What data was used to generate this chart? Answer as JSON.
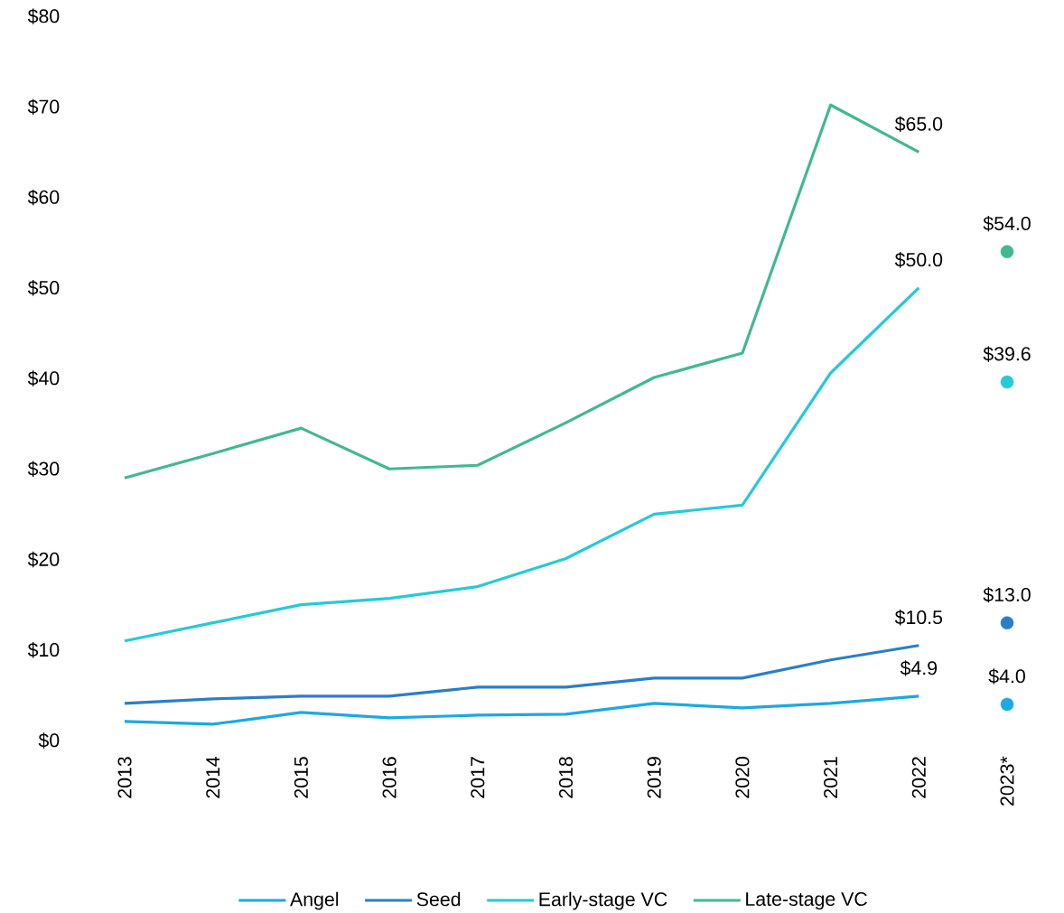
{
  "chart_data": {
    "type": "line",
    "categories": [
      "2013",
      "2014",
      "2015",
      "2016",
      "2017",
      "2018",
      "2019",
      "2020",
      "2021",
      "2022",
      "2023*"
    ],
    "series": [
      {
        "name": "Angel",
        "color": "#1ba9e1",
        "values": [
          2.1,
          1.8,
          3.1,
          2.5,
          2.8,
          2.9,
          4.1,
          3.6,
          4.1,
          4.9,
          null
        ],
        "value_labels": [
          null,
          null,
          null,
          null,
          null,
          null,
          null,
          null,
          null,
          "$4.9",
          null
        ]
      },
      {
        "name": "Seed",
        "color": "#2b7ec6",
        "values": [
          4.1,
          4.6,
          4.9,
          4.9,
          5.9,
          5.9,
          6.9,
          6.9,
          8.9,
          10.5,
          null
        ],
        "value_labels": [
          null,
          null,
          null,
          null,
          null,
          null,
          null,
          null,
          null,
          "$10.5",
          null
        ]
      },
      {
        "name": "Early-stage VC",
        "color": "#26cad6",
        "values": [
          11.0,
          13.0,
          15.0,
          15.7,
          17.0,
          20.1,
          25.0,
          26.0,
          40.6,
          50.0,
          null
        ],
        "value_labels": [
          null,
          null,
          null,
          null,
          null,
          null,
          null,
          null,
          null,
          "$50.0",
          null
        ]
      },
      {
        "name": "Late-stage VC",
        "color": "#42b88f",
        "values": [
          29.0,
          31.7,
          34.5,
          30.0,
          30.4,
          35.1,
          40.1,
          42.8,
          70.2,
          65.0,
          null
        ],
        "value_labels": [
          null,
          null,
          null,
          null,
          null,
          null,
          null,
          null,
          null,
          "$65.0",
          null
        ]
      },
      {
        "type": "scatter",
        "marker": "circle",
        "color": "#1ba9e1",
        "x": [
          "2023*"
        ],
        "values": [
          4.0
        ],
        "value_labels": [
          "$4.0"
        ]
      },
      {
        "type": "scatter",
        "marker": "circle",
        "color": "#2b7ec6",
        "x": [
          "2023*"
        ],
        "values": [
          13.0
        ],
        "value_labels": [
          "$13.0"
        ]
      },
      {
        "type": "scatter",
        "marker": "circle",
        "color": "#26cad6",
        "x": [
          "2023*"
        ],
        "values": [
          39.6
        ],
        "value_labels": [
          "$39.6"
        ]
      },
      {
        "type": "scatter",
        "marker": "circle",
        "color": "#42b88f",
        "x": [
          "2023*"
        ],
        "values": [
          54.0
        ],
        "value_labels": [
          "$54.0"
        ]
      }
    ],
    "ylim": [
      0,
      80
    ],
    "yticks": [
      {
        "value": 0,
        "label": "$0"
      },
      {
        "value": 10,
        "label": "$10"
      },
      {
        "value": 20,
        "label": "$20"
      },
      {
        "value": 30,
        "label": "$30"
      },
      {
        "value": 40,
        "label": "$40"
      },
      {
        "value": 50,
        "label": "$50"
      },
      {
        "value": 60,
        "label": "$60"
      },
      {
        "value": 70,
        "label": "$70"
      },
      {
        "value": 80,
        "label": "$80"
      }
    ],
    "marker": "none",
    "line_style": "solid",
    "legend": "bottom"
  }
}
